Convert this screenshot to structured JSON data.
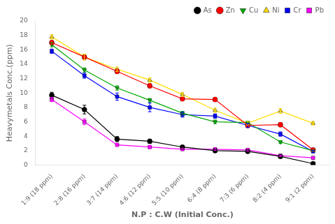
{
  "chart_data": {
    "type": "line",
    "xlabel": "N.P : C.W (Initial Conc.)",
    "ylabel": "Heavymetals Conc.(ppm)",
    "categories": [
      "1:9 (18 ppm)",
      "2:8 (16 ppm)",
      "3:7 (14 ppm)",
      "4:6 (12 ppm)",
      "5:5 (10 ppm)",
      "6:4 (8 ppm)",
      "7:3 (6 ppm)",
      "8:2 (4 ppm)",
      "9:1 (2 ppm)"
    ],
    "series": [
      {
        "name": "As",
        "color": "#000000",
        "marker": "circle",
        "values": [
          9.7,
          7.7,
          3.6,
          3.3,
          2.5,
          2.0,
          1.9,
          1.2,
          0.2
        ],
        "errors": [
          0.4,
          0.6,
          0.35,
          0.3,
          0.2,
          0.2,
          0.2,
          0.2,
          0.1
        ]
      },
      {
        "name": "Zn",
        "color": "#ff0000",
        "marker": "circle",
        "values": [
          17.0,
          15.0,
          13.0,
          11.0,
          9.2,
          9.1,
          5.5,
          5.6,
          2.1
        ],
        "errors": [
          0.3,
          0.4,
          0.3,
          0.3,
          0.3,
          0.3,
          0.3,
          0.3,
          0.15
        ]
      },
      {
        "name": "Cu",
        "color": "#00aa00",
        "marker": "triangle_down",
        "values": [
          16.7,
          13.2,
          10.7,
          9.0,
          7.2,
          6.0,
          5.9,
          3.2,
          2.0
        ],
        "errors": [
          0.3,
          0.3,
          0.3,
          0.25,
          0.25,
          0.25,
          0.2,
          0.2,
          0.1
        ]
      },
      {
        "name": "Ni",
        "color": "#ffdd00",
        "marker": "triangle_up",
        "values": [
          17.8,
          15.0,
          13.3,
          11.8,
          9.8,
          7.6,
          5.8,
          7.5,
          5.8
        ],
        "errors": [
          0.3,
          0.4,
          0.3,
          0.3,
          0.3,
          0.3,
          0.25,
          0.35,
          0.25
        ]
      },
      {
        "name": "Cr",
        "color": "#0000ff",
        "marker": "square",
        "values": [
          15.8,
          12.4,
          9.5,
          8.0,
          7.0,
          6.8,
          5.5,
          4.3,
          1.9
        ],
        "errors": [
          0.3,
          0.35,
          0.5,
          0.6,
          0.35,
          0.3,
          0.3,
          0.3,
          0.15
        ]
      },
      {
        "name": "Pb",
        "color": "#ff00ff",
        "marker": "square",
        "values": [
          9.1,
          6.0,
          2.8,
          2.5,
          2.2,
          2.2,
          2.1,
          1.3,
          1.0
        ],
        "errors": [
          0.3,
          0.4,
          0.2,
          0.2,
          0.15,
          0.15,
          0.15,
          0.1,
          0.1
        ]
      }
    ],
    "ylim": [
      0,
      20
    ],
    "yticks": [
      0,
      2,
      4,
      6,
      8,
      10,
      12,
      14,
      16,
      18,
      20
    ],
    "grid": false,
    "legend": "upper right"
  }
}
